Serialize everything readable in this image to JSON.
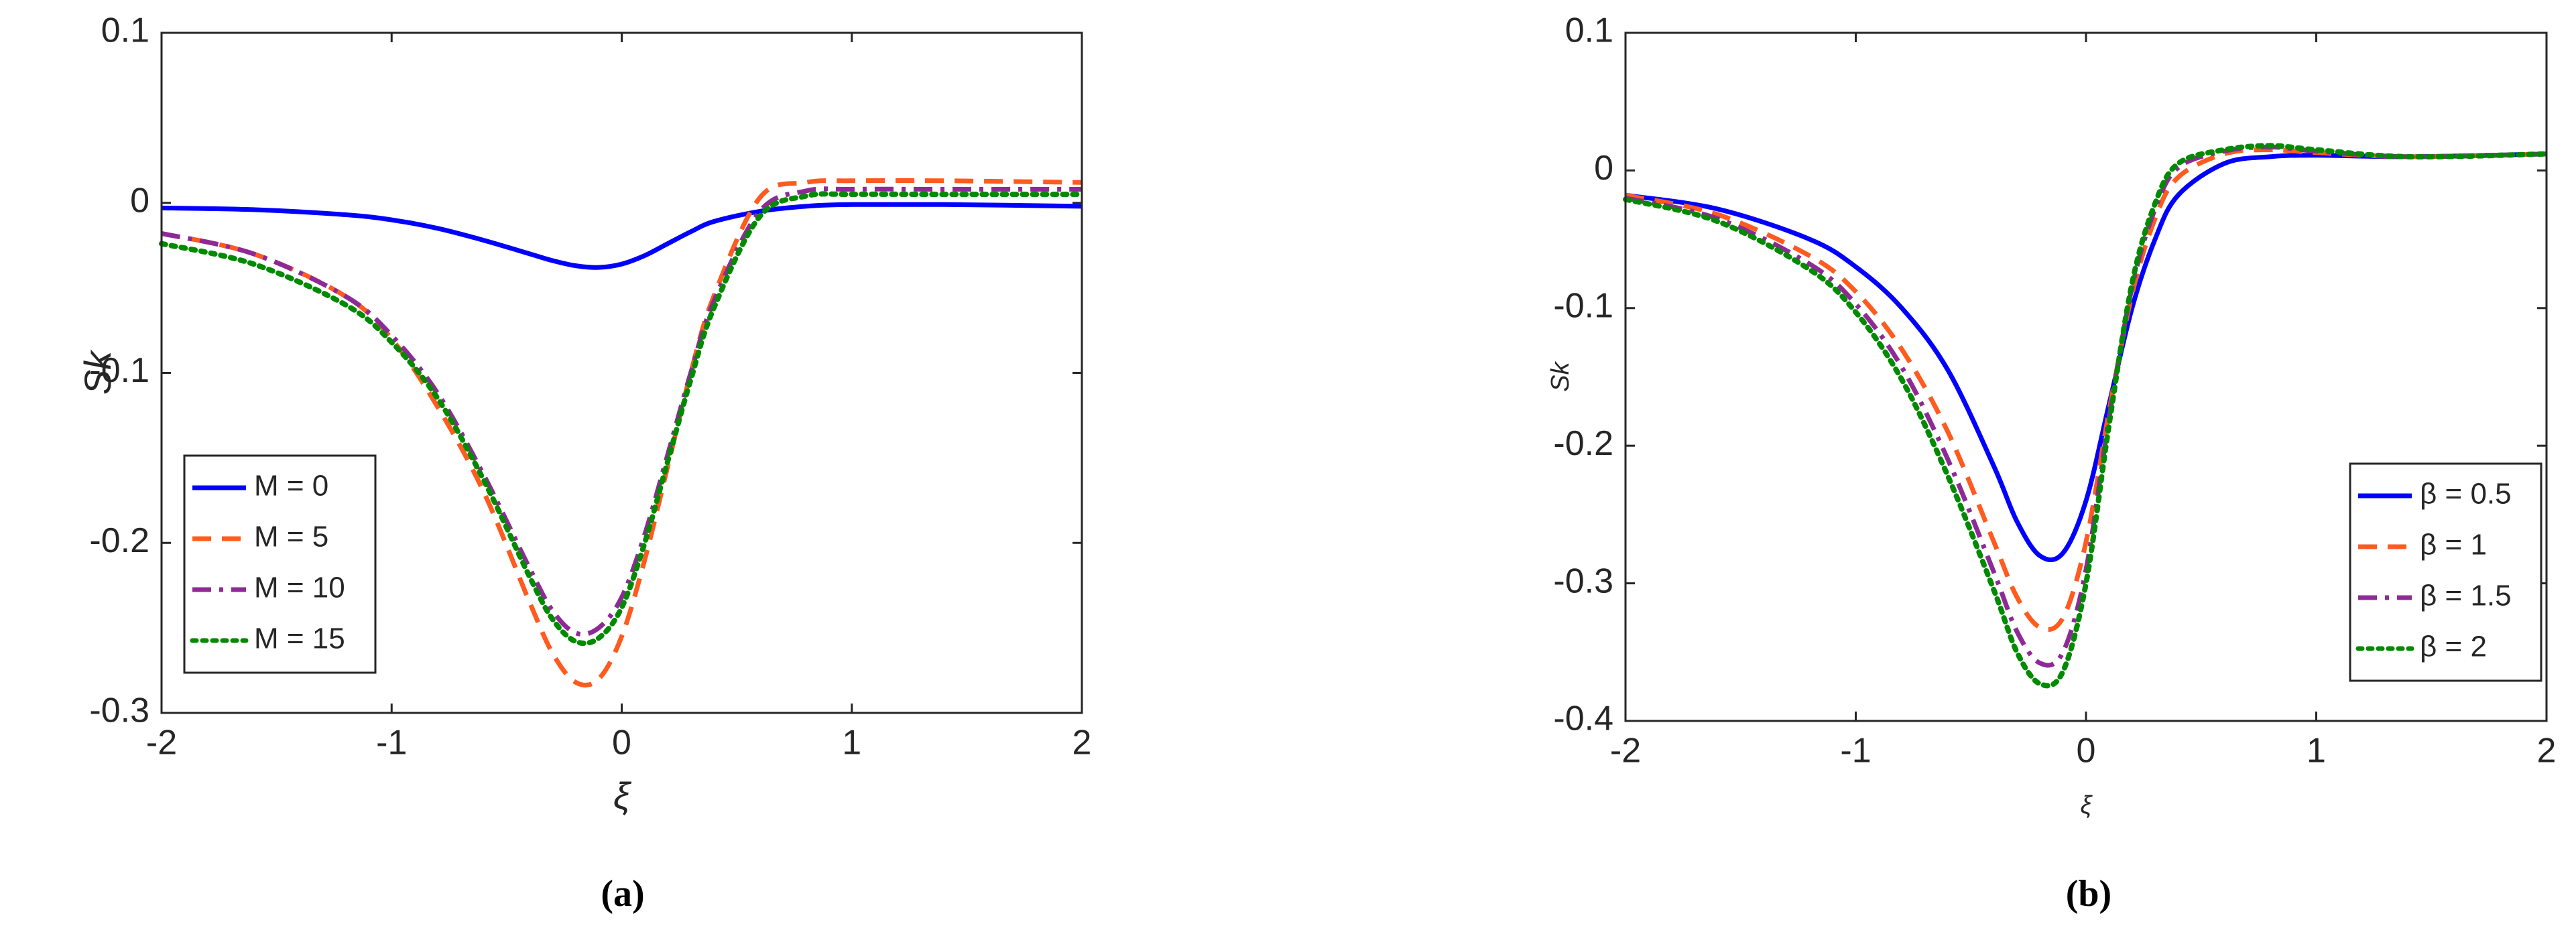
{
  "chart_data": [
    {
      "type": "line",
      "caption": "(a)",
      "xlabel": "ξ",
      "ylabel": "Sk",
      "x": [
        -2,
        -1.6,
        -1.2,
        -1,
        -0.8,
        -0.6,
        -0.4,
        -0.3,
        -0.2,
        -0.1,
        0,
        0.1,
        0.2,
        0.3,
        0.4,
        0.6,
        0.8,
        1,
        1.4,
        2
      ],
      "xlim": [
        -2,
        2
      ],
      "xticks": [
        -2,
        -1,
        0,
        1,
        2
      ],
      "ylim": [
        -0.3,
        0.1
      ],
      "yticks": [
        -0.3,
        -0.2,
        -0.1,
        0,
        0.1
      ],
      "legend": "lower left",
      "series": [
        {
          "name": "M = 0",
          "color": "#0000ff",
          "linestyle": "solid",
          "values": [
            -0.003,
            -0.004,
            -0.007,
            -0.01,
            -0.015,
            -0.022,
            -0.03,
            -0.034,
            -0.037,
            -0.038,
            -0.036,
            -0.031,
            -0.024,
            -0.017,
            -0.011,
            -0.005,
            -0.002,
            -0.001,
            -0.001,
            -0.002
          ]
        },
        {
          "name": "M = 5",
          "color": "#ff5b1f",
          "linestyle": "dashed",
          "values": [
            -0.018,
            -0.03,
            -0.055,
            -0.08,
            -0.12,
            -0.17,
            -0.235,
            -0.265,
            -0.282,
            -0.28,
            -0.255,
            -0.21,
            -0.155,
            -0.1,
            -0.055,
            0.003,
            0.012,
            0.013,
            0.013,
            0.012
          ]
        },
        {
          "name": "M = 10",
          "color": "#8e2a96",
          "linestyle": "dashdot",
          "values": [
            -0.018,
            -0.03,
            -0.055,
            -0.078,
            -0.112,
            -0.16,
            -0.215,
            -0.24,
            -0.253,
            -0.25,
            -0.232,
            -0.195,
            -0.148,
            -0.1,
            -0.058,
            -0.005,
            0.007,
            0.008,
            0.008,
            0.008
          ]
        },
        {
          "name": "M = 15",
          "color": "#008a00",
          "linestyle": "dotted",
          "values": [
            -0.024,
            -0.036,
            -0.06,
            -0.082,
            -0.115,
            -0.163,
            -0.22,
            -0.245,
            -0.258,
            -0.256,
            -0.238,
            -0.2,
            -0.152,
            -0.104,
            -0.062,
            -0.008,
            0.004,
            0.005,
            0.005,
            0.005
          ]
        }
      ]
    },
    {
      "type": "line",
      "caption": "(b)",
      "xlabel": "ξ",
      "ylabel": "Sk",
      "x": [
        -2,
        -1.6,
        -1.2,
        -1,
        -0.8,
        -0.6,
        -0.4,
        -0.3,
        -0.2,
        -0.1,
        0,
        0.1,
        0.2,
        0.3,
        0.4,
        0.6,
        0.8,
        1,
        1.4,
        2
      ],
      "xlim": [
        -2,
        2
      ],
      "xticks": [
        -2,
        -1,
        0,
        1,
        2
      ],
      "ylim": [
        -0.4,
        0.1
      ],
      "yticks": [
        -0.4,
        -0.3,
        -0.2,
        -0.1,
        0,
        0.1
      ],
      "legend": "lower right",
      "series": [
        {
          "name": "β = 0.5",
          "color": "#0000ff",
          "linestyle": "solid",
          "values": [
            -0.018,
            -0.028,
            -0.05,
            -0.07,
            -0.1,
            -0.145,
            -0.215,
            -0.255,
            -0.28,
            -0.278,
            -0.24,
            -0.17,
            -0.1,
            -0.05,
            -0.018,
            0.005,
            0.01,
            0.011,
            0.01,
            0.012
          ]
        },
        {
          "name": "β = 1",
          "color": "#ff5b1f",
          "linestyle": "dashed",
          "values": [
            -0.018,
            -0.032,
            -0.062,
            -0.088,
            -0.13,
            -0.19,
            -0.27,
            -0.31,
            -0.332,
            -0.325,
            -0.27,
            -0.175,
            -0.09,
            -0.035,
            -0.005,
            0.012,
            0.015,
            0.013,
            0.01,
            0.012
          ]
        },
        {
          "name": "β = 1.5",
          "color": "#8e2a96",
          "linestyle": "dashdot",
          "values": [
            -0.02,
            -0.035,
            -0.068,
            -0.097,
            -0.143,
            -0.21,
            -0.292,
            -0.335,
            -0.358,
            -0.35,
            -0.29,
            -0.18,
            -0.085,
            -0.028,
            0.002,
            0.014,
            0.017,
            0.014,
            0.01,
            0.012
          ]
        },
        {
          "name": "β = 2",
          "color": "#008a00",
          "linestyle": "dotted",
          "values": [
            -0.021,
            -0.037,
            -0.072,
            -0.103,
            -0.152,
            -0.222,
            -0.305,
            -0.35,
            -0.373,
            -0.364,
            -0.3,
            -0.185,
            -0.082,
            -0.024,
            0.005,
            0.015,
            0.018,
            0.015,
            0.01,
            0.012
          ]
        }
      ]
    }
  ]
}
